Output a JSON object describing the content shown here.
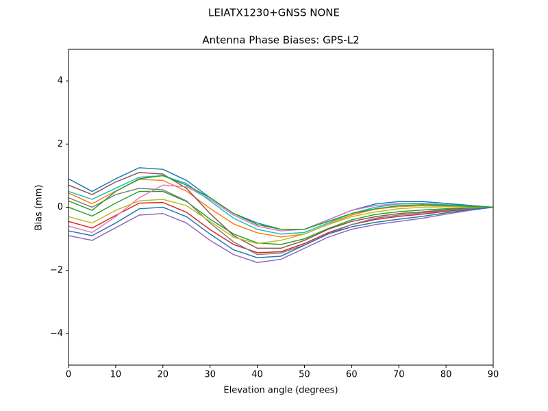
{
  "chart_data": {
    "type": "line",
    "suptitle": "LEIATX1230+GNSS NONE",
    "title": "Antenna Phase Biases: GPS-L2",
    "xlabel": "Elevation angle (degrees)",
    "ylabel": "Bias (mm)",
    "x": [
      0,
      5,
      10,
      15,
      20,
      25,
      30,
      35,
      40,
      45,
      50,
      55,
      60,
      65,
      70,
      75,
      80,
      85,
      90
    ],
    "xlim": [
      0,
      90
    ],
    "xticks": [
      0,
      10,
      20,
      30,
      40,
      50,
      60,
      70,
      80,
      90
    ],
    "ylim": [
      -5,
      5
    ],
    "yticks": [
      {
        "value": -4,
        "label": "−4"
      },
      {
        "value": -2,
        "label": "−2"
      },
      0,
      2,
      4
    ],
    "grid": false,
    "series": [
      {
        "color": "#1f77b4",
        "values": [
          0.9,
          0.5,
          0.9,
          1.25,
          1.2,
          0.85,
          0.3,
          -0.2,
          -0.5,
          -0.7,
          -0.7,
          -0.4,
          -0.1,
          0.1,
          0.18,
          0.18,
          0.12,
          0.06,
          0
        ]
      },
      {
        "color": "#ff7f0e",
        "values": [
          0.45,
          0.11,
          0.51,
          0.88,
          0.85,
          0.51,
          -0.04,
          -0.53,
          -0.81,
          -0.94,
          -0.85,
          -0.54,
          -0.25,
          -0.06,
          0.02,
          0.05,
          0.04,
          0.02,
          0
        ]
      },
      {
        "color": "#2ca02c",
        "values": [
          0,
          -0.28,
          0.13,
          0.5,
          0.5,
          0.18,
          -0.38,
          -0.85,
          -1.13,
          -1.18,
          -1,
          -0.68,
          -0.4,
          -0.23,
          -0.14,
          -0.09,
          -0.05,
          -0.02,
          0
        ]
      },
      {
        "color": "#d62728",
        "values": [
          -0.45,
          -0.66,
          -0.26,
          0.13,
          0.15,
          -0.16,
          -0.71,
          -1.18,
          -1.44,
          -1.41,
          -1.15,
          -0.81,
          -0.55,
          -0.39,
          -0.29,
          -0.22,
          -0.13,
          -0.06,
          0
        ]
      },
      {
        "color": "#9467bd",
        "values": [
          -0.9,
          -1.05,
          -0.65,
          -0.25,
          -0.2,
          -0.5,
          -1.05,
          -1.5,
          -1.75,
          -1.65,
          -1.3,
          -0.95,
          -0.7,
          -0.55,
          -0.45,
          -0.35,
          -0.22,
          -0.1,
          0
        ]
      },
      {
        "color": "#8c564b",
        "values": [
          0.7,
          0.4,
          0.8,
          1.1,
          1.05,
          0.6,
          -0.2,
          -0.9,
          -1.3,
          -1.3,
          -1.05,
          -0.7,
          -0.45,
          -0.3,
          -0.2,
          -0.15,
          -0.08,
          -0.04,
          0
        ]
      },
      {
        "color": "#e377c2",
        "values": [
          -0.6,
          -0.8,
          -0.3,
          0.3,
          0.7,
          0.65,
          0.25,
          -0.25,
          -0.6,
          -0.75,
          -0.7,
          -0.4,
          -0.1,
          0.05,
          0.12,
          0.12,
          0.08,
          0.04,
          0
        ]
      },
      {
        "color": "#7f7f7f",
        "values": [
          0.3,
          0,
          0.4,
          0.6,
          0.55,
          0.2,
          -0.5,
          -1.1,
          -1.5,
          -1.45,
          -1.2,
          -0.85,
          -0.55,
          -0.35,
          -0.25,
          -0.18,
          -0.1,
          -0.05,
          0
        ]
      },
      {
        "color": "#bcbd22",
        "values": [
          -0.3,
          -0.5,
          -0.1,
          0.2,
          0.25,
          0.05,
          -0.45,
          -0.95,
          -1.15,
          -1.05,
          -0.85,
          -0.55,
          -0.3,
          -0.15,
          -0.05,
          0,
          0.01,
          0.01,
          0
        ]
      },
      {
        "color": "#17becf",
        "values": [
          0.5,
          0.25,
          0.6,
          0.95,
          1.0,
          0.75,
          0.2,
          -0.35,
          -0.7,
          -0.85,
          -0.8,
          -0.5,
          -0.2,
          0,
          0.1,
          0.12,
          0.08,
          0.04,
          0
        ]
      },
      {
        "color": "#1f77b4",
        "values": [
          -0.75,
          -0.9,
          -0.5,
          -0.05,
          0,
          -0.3,
          -0.85,
          -1.35,
          -1.6,
          -1.55,
          -1.2,
          -0.85,
          -0.62,
          -0.48,
          -0.38,
          -0.29,
          -0.18,
          -0.08,
          0
        ]
      },
      {
        "color": "#2ca02c",
        "values": [
          0.2,
          -0.1,
          0.5,
          0.9,
          1.0,
          0.7,
          0.3,
          -0.2,
          -0.55,
          -0.7,
          -0.7,
          -0.45,
          -0.2,
          -0.05,
          0.05,
          0.08,
          0.06,
          0.03,
          0
        ]
      }
    ]
  }
}
